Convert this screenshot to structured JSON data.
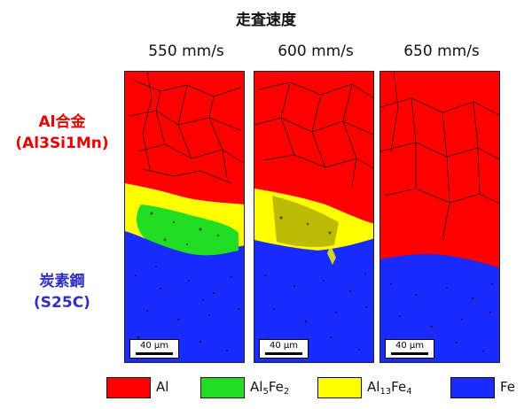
{
  "figure": {
    "title": "走査速度",
    "speeds": [
      "550 mm/s",
      "600 mm/s",
      "650 mm/s"
    ],
    "top_material": {
      "name": "Al合金",
      "grade": "(Al3Si1Mn)"
    },
    "bottom_material": {
      "name": "炭素鋼",
      "grade": "(S25C)"
    },
    "scale_bar": "40 μm",
    "colors": {
      "Al": "#ff0000",
      "Al5Fe2": "#22dd22",
      "Al13Fe4": "#ffff00",
      "Fe": "#1a2bff",
      "label_top": "#e60000",
      "label_bottom": "#3030c8"
    },
    "legend": [
      {
        "key": "Al",
        "base": "Al",
        "parts": []
      },
      {
        "key": "Al5Fe2",
        "base": "Al",
        "parts": [
          {
            "sub": "5"
          },
          {
            "txt": "Fe"
          },
          {
            "sub": "2"
          }
        ]
      },
      {
        "key": "Al13Fe4",
        "base": "Al",
        "parts": [
          {
            "sub": "13"
          },
          {
            "txt": "Fe"
          },
          {
            "sub": "4"
          }
        ]
      },
      {
        "key": "Fe",
        "base": "Fe",
        "parts": []
      }
    ]
  }
}
